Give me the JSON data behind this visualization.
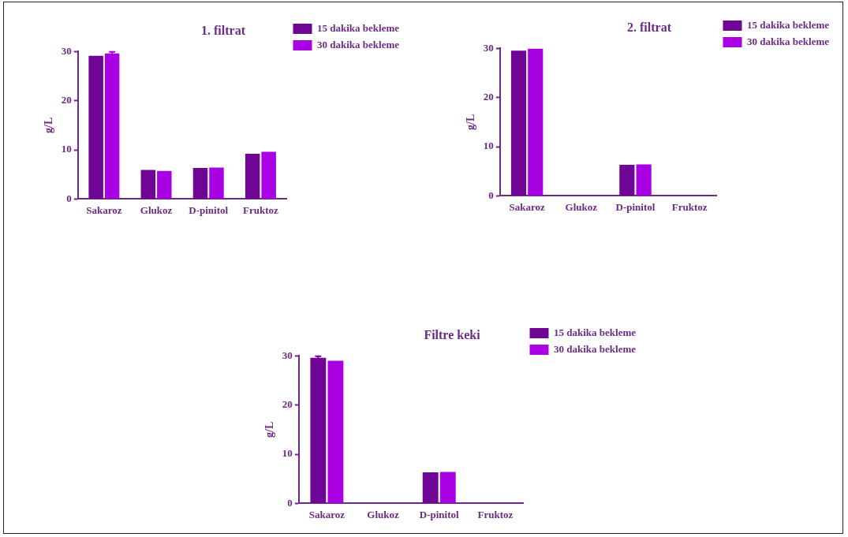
{
  "chart_data": [
    {
      "type": "bar",
      "title": "1. filtrat",
      "ylabel": "g/L",
      "categories": [
        "Sakaroz",
        "Glukoz",
        "D-pinitol",
        "Fruktoz"
      ],
      "series": [
        {
          "name": "15 dakika bekleme",
          "color": "#6e0595",
          "values": [
            29.1,
            5.9,
            6.3,
            9.2
          ]
        },
        {
          "name": "30 dakika bekleme",
          "color": "#aa00e4",
          "values": [
            29.6,
            5.7,
            6.4,
            9.6
          ],
          "errors": [
            0.3,
            null,
            null,
            null
          ]
        }
      ],
      "ylim": [
        0,
        30
      ],
      "yticks": [
        0,
        10,
        20,
        30
      ],
      "grid": false,
      "legend": "top right"
    },
    {
      "type": "bar",
      "title": "2. filtrat",
      "ylabel": "g/L",
      "categories": [
        "Sakaroz",
        "Glukoz",
        "D-pinitol",
        "Fruktoz"
      ],
      "series": [
        {
          "name": "15 dakika bekleme",
          "color": "#6e0595",
          "values": [
            29.5,
            0,
            6.3,
            0
          ]
        },
        {
          "name": "30 dakika bekleme",
          "color": "#aa00e4",
          "values": [
            29.9,
            0,
            6.4,
            0
          ]
        }
      ],
      "ylim": [
        0,
        30
      ],
      "yticks": [
        0,
        10,
        20,
        30
      ],
      "grid": false,
      "legend": "top right"
    },
    {
      "type": "bar",
      "title": "Filtre keki",
      "ylabel": "g/L",
      "categories": [
        "Sakaroz",
        "Glukoz",
        "D-pinitol",
        "Fruktoz"
      ],
      "series": [
        {
          "name": "15 dakika bekleme",
          "color": "#6e0595",
          "values": [
            29.6,
            0,
            6.3,
            0
          ],
          "errors": [
            0.3,
            null,
            null,
            null
          ]
        },
        {
          "name": "30 dakika bekleme",
          "color": "#aa00e4",
          "values": [
            29.0,
            0,
            6.4,
            0
          ]
        }
      ],
      "ylim": [
        0,
        30
      ],
      "yticks": [
        0,
        10,
        20,
        30
      ],
      "grid": false,
      "legend": "top right"
    }
  ]
}
